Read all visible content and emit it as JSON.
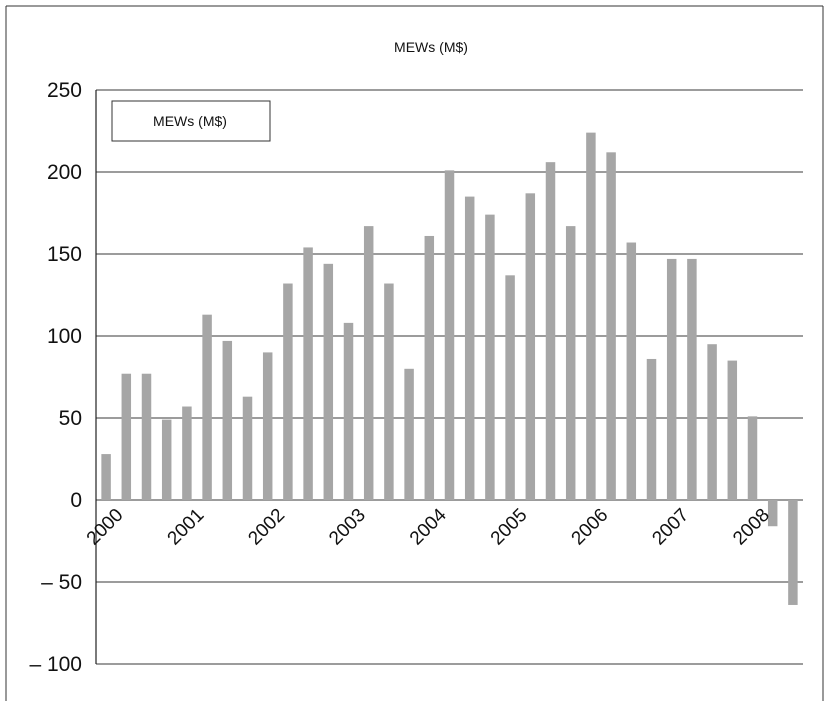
{
  "chart_data": {
    "type": "bar",
    "title": "MEWs (M$)",
    "xlabel": "",
    "ylabel": "",
    "ylim": [
      -100,
      250
    ],
    "y_ticks": [
      "250",
      "200",
      "150",
      "100",
      "50",
      "0",
      "– 50",
      "– 100"
    ],
    "y_tick_values": [
      250,
      200,
      150,
      100,
      50,
      0,
      -50,
      -100
    ],
    "x_tick_labels": [
      "2000",
      "2001",
      "2002",
      "2003",
      "2004",
      "2005",
      "2006",
      "2007",
      "2008"
    ],
    "legend": {
      "entries": [
        "MEWs (M$)"
      ],
      "placement": "top-left"
    },
    "grid": true,
    "bar_color": "#a6a6a6",
    "series": [
      {
        "name": "MEWs (M$)",
        "values": [
          28,
          77,
          77,
          49,
          57,
          113,
          97,
          63,
          90,
          132,
          154,
          144,
          108,
          167,
          132,
          80,
          161,
          201,
          185,
          174,
          137,
          187,
          206,
          167,
          224,
          212,
          157,
          86,
          147,
          147,
          95,
          85,
          51,
          -16,
          -64
        ]
      }
    ]
  }
}
